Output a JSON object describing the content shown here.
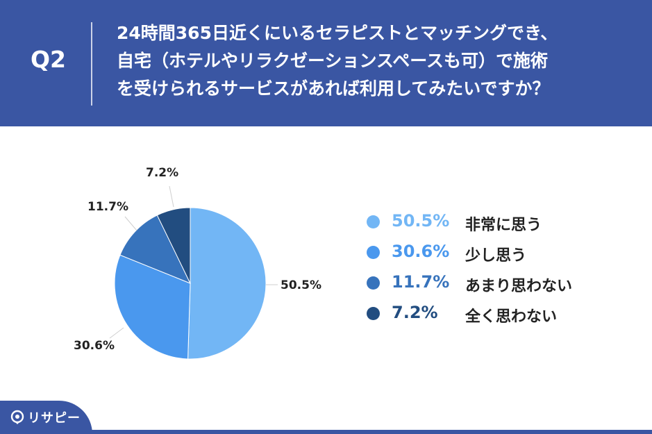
{
  "header": {
    "q_label": "Q2",
    "question_lines": [
      "24時間365日近くにいるセラピストとマッチングでき、",
      "自宅（ホテルやリラクゼーションスペースも可）で施術",
      "を受けられるサービスがあれば利用してみたいですか？"
    ]
  },
  "brand": {
    "name": "リサピー"
  },
  "colors": {
    "background": "#3a56a3",
    "panel": "#ffffff"
  },
  "chart_data": {
    "type": "pie",
    "title": "",
    "categories": [
      "非常に思う",
      "少し思う",
      "あまり思わない",
      "全く思わない"
    ],
    "values": [
      50.5,
      30.6,
      11.7,
      7.2
    ],
    "value_labels": [
      "50.5%",
      "30.6%",
      "11.7%",
      "7.2%"
    ],
    "colors": [
      "#72b6f5",
      "#4a98ee",
      "#3773bc",
      "#224d80"
    ],
    "start_angle": "12 o'clock",
    "direction": "clockwise",
    "legend_position": "right"
  }
}
